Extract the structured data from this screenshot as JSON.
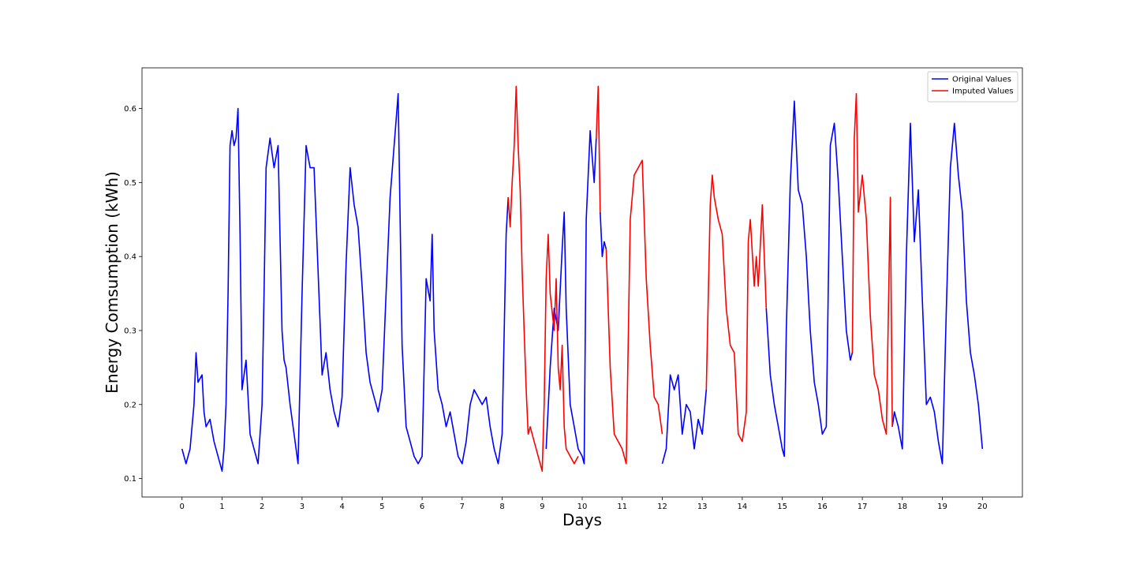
{
  "chart_data": {
    "type": "line",
    "title": "",
    "xlabel": "Days",
    "ylabel": "Energy Comsumption (kWh)",
    "xlim": [
      -1.0,
      21.0
    ],
    "ylim": [
      0.075,
      0.655
    ],
    "xticks": [
      0,
      1,
      2,
      3,
      4,
      5,
      6,
      7,
      8,
      9,
      10,
      11,
      12,
      13,
      14,
      15,
      16,
      17,
      18,
      19,
      20
    ],
    "yticks": [
      0.1,
      0.2,
      0.3,
      0.4,
      0.5,
      0.6
    ],
    "grid": false,
    "legend_position": "top-right",
    "series": [
      {
        "name": "Original Values",
        "color": "#0000ff",
        "segments": [
          {
            "x": [
              0,
              0.1,
              0.2,
              0.3,
              0.35,
              0.4,
              0.5,
              0.55,
              0.6,
              0.7,
              0.8,
              0.9,
              1.0,
              1.05,
              1.1,
              1.15,
              1.2,
              1.25,
              1.3,
              1.35,
              1.4,
              1.45,
              1.5,
              1.6,
              1.7,
              1.8,
              1.9,
              2.0,
              2.05,
              2.1,
              2.2,
              2.3,
              2.4,
              2.5,
              2.55,
              2.6,
              2.7,
              2.8,
              2.9,
              3.0,
              3.1,
              3.2,
              3.3,
              3.4,
              3.5,
              3.6,
              3.7,
              3.8,
              3.9,
              4.0,
              4.1,
              4.2,
              4.3,
              4.4,
              4.5,
              4.6,
              4.7,
              4.8,
              4.9,
              5.0,
              5.1,
              5.2,
              5.3,
              5.4,
              5.45,
              5.5,
              5.6,
              5.7,
              5.8,
              5.9,
              6.0,
              6.1,
              6.2,
              6.25,
              6.3,
              6.4,
              6.5,
              6.6,
              6.7,
              6.8,
              6.9,
              7.0,
              7.1,
              7.2,
              7.3,
              7.4,
              7.5,
              7.6,
              7.7,
              7.8,
              7.9,
              8.0,
              8.1,
              8.15
            ],
            "y": [
              0.14,
              0.12,
              0.14,
              0.2,
              0.27,
              0.23,
              0.24,
              0.19,
              0.17,
              0.18,
              0.15,
              0.13,
              0.11,
              0.14,
              0.2,
              0.35,
              0.55,
              0.57,
              0.55,
              0.56,
              0.6,
              0.43,
              0.22,
              0.26,
              0.16,
              0.14,
              0.12,
              0.2,
              0.35,
              0.52,
              0.56,
              0.52,
              0.55,
              0.3,
              0.26,
              0.25,
              0.2,
              0.16,
              0.12,
              0.35,
              0.55,
              0.52,
              0.52,
              0.38,
              0.24,
              0.27,
              0.22,
              0.19,
              0.17,
              0.21,
              0.39,
              0.52,
              0.47,
              0.44,
              0.36,
              0.27,
              0.23,
              0.21,
              0.19,
              0.22,
              0.35,
              0.48,
              0.55,
              0.62,
              0.45,
              0.28,
              0.17,
              0.15,
              0.13,
              0.12,
              0.13,
              0.37,
              0.34,
              0.43,
              0.3,
              0.22,
              0.2,
              0.17,
              0.19,
              0.16,
              0.13,
              0.12,
              0.15,
              0.2,
              0.22,
              0.21,
              0.2,
              0.21,
              0.17,
              0.14,
              0.12,
              0.16,
              0.43,
              0.48
            ]
          },
          {
            "x": [
              9.1,
              9.2,
              9.3,
              9.4,
              9.5,
              9.55,
              9.6,
              9.7,
              9.8,
              9.9,
              10.0,
              10.05,
              10.1,
              10.2,
              10.3,
              10.35
            ],
            "y": [
              0.14,
              0.25,
              0.33,
              0.3,
              0.41,
              0.46,
              0.33,
              0.2,
              0.17,
              0.14,
              0.13,
              0.12,
              0.45,
              0.57,
              0.5,
              0.56
            ]
          },
          {
            "x": [
              10.45,
              10.5,
              10.55,
              10.6
            ],
            "y": [
              0.46,
              0.4,
              0.42,
              0.41
            ]
          },
          {
            "x": [
              12.0,
              12.1,
              12.2,
              12.3,
              12.4,
              12.5,
              12.6,
              12.7,
              12.8,
              12.9,
              13.0,
              13.1
            ],
            "y": [
              0.12,
              0.14,
              0.24,
              0.22,
              0.24,
              0.16,
              0.2,
              0.19,
              0.14,
              0.18,
              0.16,
              0.22
            ]
          },
          {
            "x": [
              14.6,
              14.7,
              14.8,
              14.9,
              15.0,
              15.05,
              15.1,
              15.2,
              15.3,
              15.4,
              15.5,
              15.6,
              15.7,
              15.8,
              15.9,
              16.0,
              16.1,
              16.2,
              16.3,
              16.4,
              16.5,
              16.6,
              16.7,
              16.75
            ],
            "y": [
              0.33,
              0.24,
              0.2,
              0.17,
              0.14,
              0.13,
              0.3,
              0.5,
              0.61,
              0.49,
              0.47,
              0.4,
              0.3,
              0.23,
              0.2,
              0.16,
              0.17,
              0.55,
              0.58,
              0.5,
              0.4,
              0.3,
              0.26,
              0.27
            ]
          },
          {
            "x": [
              17.75,
              17.8,
              17.9,
              18.0,
              18.1,
              18.2,
              18.3,
              18.4,
              18.5,
              18.6,
              18.7,
              18.8,
              18.9,
              19.0,
              19.1,
              19.2,
              19.3,
              19.4,
              19.5,
              19.6,
              19.7,
              19.8,
              19.9,
              20.0
            ],
            "y": [
              0.17,
              0.19,
              0.17,
              0.14,
              0.4,
              0.58,
              0.42,
              0.49,
              0.34,
              0.2,
              0.21,
              0.19,
              0.15,
              0.12,
              0.33,
              0.52,
              0.58,
              0.51,
              0.46,
              0.34,
              0.27,
              0.24,
              0.2,
              0.14
            ]
          }
        ]
      },
      {
        "name": "Imputed Values",
        "color": "#ff0000",
        "segments": [
          {
            "x": [
              8.15,
              8.2,
              8.25,
              8.3,
              8.35,
              8.4,
              8.45,
              8.5,
              8.55,
              8.6,
              8.65,
              8.7,
              8.8,
              8.9,
              9.0,
              9.05,
              9.1,
              9.15,
              9.2,
              9.3,
              9.35,
              9.4,
              9.45,
              9.5,
              9.55,
              9.6,
              9.7,
              9.8,
              9.9
            ],
            "y": [
              0.48,
              0.44,
              0.5,
              0.55,
              0.63,
              0.55,
              0.49,
              0.38,
              0.3,
              0.22,
              0.16,
              0.17,
              0.15,
              0.13,
              0.11,
              0.2,
              0.37,
              0.43,
              0.35,
              0.3,
              0.37,
              0.25,
              0.22,
              0.28,
              0.17,
              0.14,
              0.13,
              0.12,
              0.13
            ]
          },
          {
            "x": [
              10.35,
              10.4,
              10.45
            ],
            "y": [
              0.56,
              0.63,
              0.46
            ]
          },
          {
            "x": [
              10.6,
              10.7,
              10.8,
              10.9,
              11.0,
              11.1,
              11.2,
              11.3,
              11.4,
              11.5,
              11.6,
              11.7,
              11.8,
              11.9,
              12.0
            ],
            "y": [
              0.41,
              0.25,
              0.16,
              0.15,
              0.14,
              0.12,
              0.45,
              0.51,
              0.52,
              0.53,
              0.37,
              0.28,
              0.21,
              0.2,
              0.16
            ]
          },
          {
            "x": [
              13.1,
              13.2,
              13.25,
              13.3,
              13.4,
              13.5,
              13.6,
              13.7,
              13.8,
              13.9,
              14.0,
              14.1,
              14.15,
              14.2,
              14.3,
              14.35,
              14.4,
              14.5,
              14.6
            ],
            "y": [
              0.22,
              0.47,
              0.51,
              0.48,
              0.45,
              0.43,
              0.33,
              0.28,
              0.27,
              0.16,
              0.15,
              0.19,
              0.42,
              0.45,
              0.36,
              0.4,
              0.36,
              0.47,
              0.33
            ]
          },
          {
            "x": [
              16.75,
              16.8,
              16.85,
              16.9,
              17.0,
              17.1,
              17.2,
              17.3,
              17.4,
              17.5,
              17.6,
              17.7,
              17.75
            ],
            "y": [
              0.27,
              0.56,
              0.62,
              0.46,
              0.51,
              0.45,
              0.32,
              0.24,
              0.22,
              0.18,
              0.16,
              0.48,
              0.17
            ]
          }
        ]
      }
    ]
  }
}
